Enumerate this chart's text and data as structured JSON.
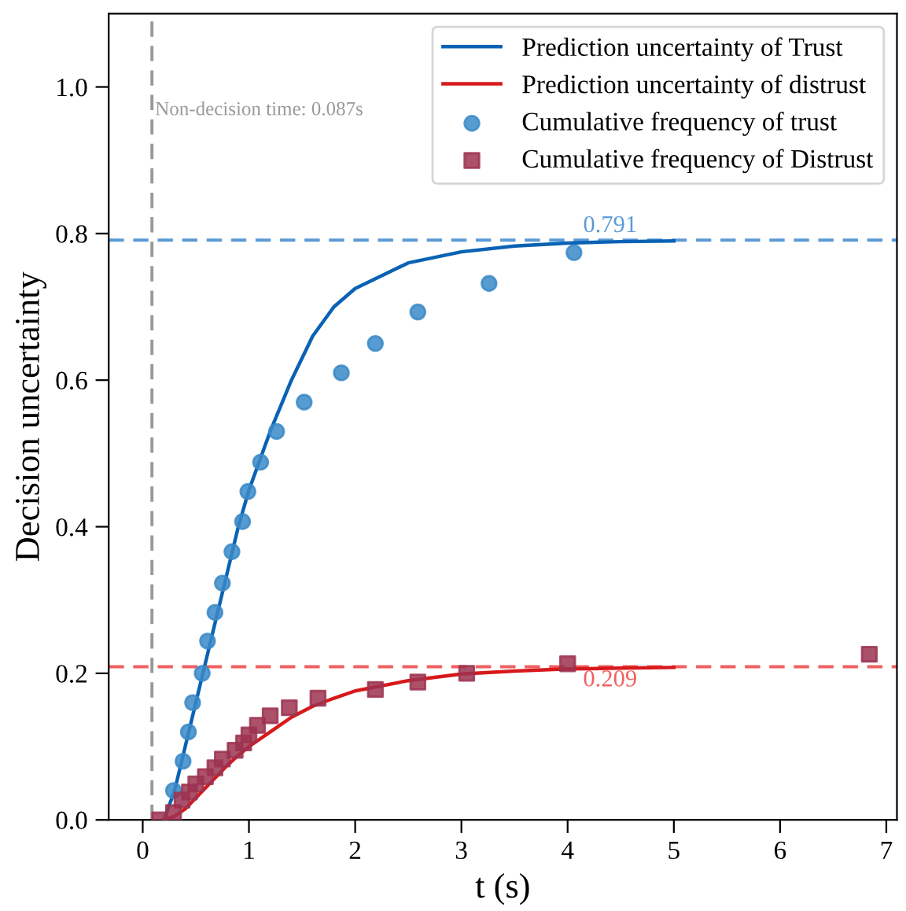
{
  "chart_data": {
    "type": "line",
    "xlabel": "t (s)",
    "ylabel": "Decision uncertainty",
    "xlim": [
      -0.32,
      7.1
    ],
    "ylim": [
      0,
      1.1
    ],
    "xticks": [
      0,
      1,
      2,
      3,
      4,
      5,
      6,
      7
    ],
    "yticks": [
      {
        "value": 0,
        "label": "0.0"
      },
      {
        "value": 0.2,
        "label": "0.2"
      },
      {
        "value": 0.4,
        "label": "0.4"
      },
      {
        "value": 0.6,
        "label": "0.6"
      },
      {
        "value": 0.8,
        "label": "0.8"
      },
      {
        "value": 1.0,
        "label": "1.0"
      }
    ],
    "grid": false,
    "legend": "top right",
    "series": [
      {
        "name": "Prediction uncertainty of Trust",
        "color": "#0a62b4",
        "line_style": "solid",
        "marker": "none",
        "x": [
          0.2,
          0.3,
          0.4,
          0.5,
          0.6,
          0.7,
          0.8,
          0.9,
          1.0,
          1.2,
          1.4,
          1.6,
          1.8,
          2.0,
          2.5,
          3.0,
          3.5,
          4.0,
          4.5,
          5.0
        ],
        "values": [
          0.0,
          0.04,
          0.1,
          0.16,
          0.22,
          0.28,
          0.34,
          0.4,
          0.45,
          0.53,
          0.6,
          0.66,
          0.7,
          0.725,
          0.76,
          0.775,
          0.783,
          0.787,
          0.789,
          0.79
        ]
      },
      {
        "name": "Prediction uncertainty of distrust",
        "color": "#d7191c",
        "line_style": "solid",
        "marker": "none",
        "x": [
          0.2,
          0.3,
          0.4,
          0.5,
          0.6,
          0.7,
          0.8,
          0.9,
          1.0,
          1.2,
          1.4,
          1.6,
          1.8,
          2.0,
          2.5,
          3.0,
          3.5,
          4.0,
          4.5,
          5.0
        ],
        "values": [
          0.0,
          0.005,
          0.015,
          0.03,
          0.045,
          0.06,
          0.075,
          0.088,
          0.1,
          0.12,
          0.14,
          0.155,
          0.166,
          0.176,
          0.19,
          0.199,
          0.203,
          0.206,
          0.207,
          0.208
        ]
      },
      {
        "name": "Cumulative frequency of trust",
        "type": "scatter",
        "color": "#3a8ac8",
        "marker": "circle",
        "x": [
          0.29,
          0.38,
          0.43,
          0.47,
          0.56,
          0.61,
          0.68,
          0.75,
          0.84,
          0.94,
          0.99,
          1.11,
          1.26,
          1.52,
          1.87,
          2.19,
          2.59,
          3.26,
          4.06
        ],
        "values": [
          0.04,
          0.08,
          0.12,
          0.16,
          0.2,
          0.244,
          0.283,
          0.323,
          0.366,
          0.407,
          0.448,
          0.488,
          0.53,
          0.57,
          0.61,
          0.65,
          0.693,
          0.732,
          0.774
        ]
      },
      {
        "name": "Cumulative frequency of Distrust",
        "type": "scatter",
        "color": "#9c3350",
        "marker": "square",
        "x": [
          0.16,
          0.29,
          0.37,
          0.44,
          0.5,
          0.59,
          0.68,
          0.75,
          0.87,
          0.95,
          1.0,
          1.08,
          1.2,
          1.38,
          1.65,
          2.19,
          2.59,
          3.05,
          4.0,
          6.84
        ],
        "values": [
          0.0,
          0.01,
          0.027,
          0.038,
          0.049,
          0.059,
          0.071,
          0.083,
          0.095,
          0.105,
          0.116,
          0.129,
          0.142,
          0.153,
          0.166,
          0.178,
          0.188,
          0.2,
          0.213,
          0.226
        ]
      }
    ],
    "ref_lines": [
      {
        "axis": "x",
        "value": 0.087,
        "label": "Non-decision time: 0.087s",
        "color": "#999999",
        "line_style": "dashed"
      },
      {
        "axis": "y",
        "value": 0.791,
        "label": "0.791",
        "color": "#5b9bd5",
        "line_style": "dashed"
      },
      {
        "axis": "y",
        "value": 0.209,
        "label": "0.209",
        "color": "#f06060",
        "line_style": "dashed"
      }
    ]
  }
}
